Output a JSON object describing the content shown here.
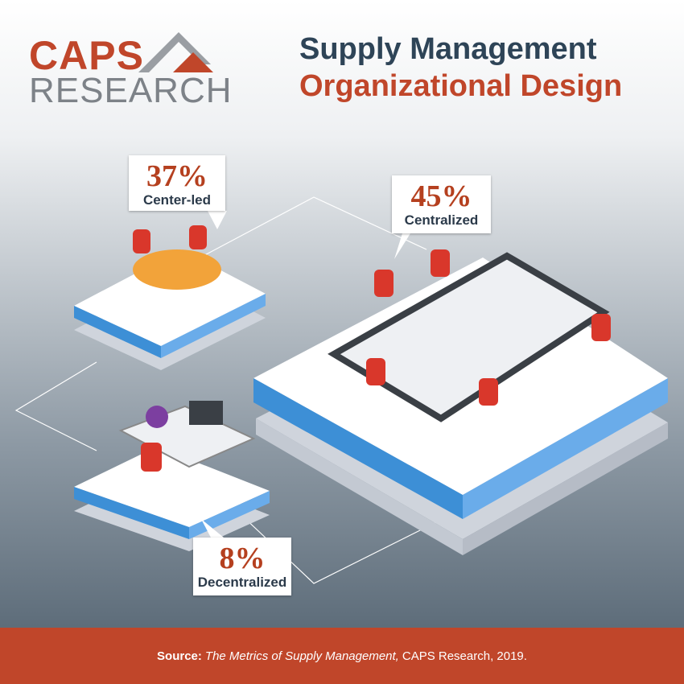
{
  "logo": {
    "line1": "CAPS",
    "line2": "RESEARCH"
  },
  "header": {
    "title": "Supply Management",
    "subtitle": "Organizational Design"
  },
  "callouts": [
    {
      "value": "37%",
      "label": "Center-led"
    },
    {
      "value": "45%",
      "label": "Centralized"
    },
    {
      "value": "8%",
      "label": "Decentralized"
    }
  ],
  "footer": {
    "label": "Source:",
    "work": "The Metrics of Supply Management,",
    "rest": "CAPS Research, 2019."
  }
}
